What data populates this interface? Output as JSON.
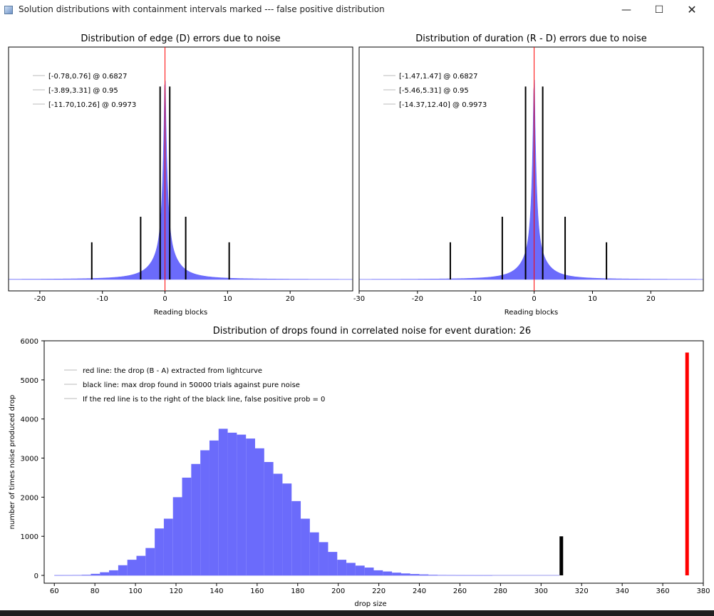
{
  "window": {
    "title": "Solution distributions with containment intervals marked --- false positive distribution",
    "minimize_glyph": "—",
    "maximize_glyph": "☐",
    "close_glyph": "✕"
  },
  "colors": {
    "distribution_fill": "#6b6bfb",
    "center_line": "#ff0000",
    "interval_line": "#000000",
    "drop_line": "#ff0000"
  },
  "chart_data": [
    {
      "type": "area",
      "title": "Distribution of edge (D) errors due to noise",
      "xlabel": "Reading blocks",
      "ylabel": "",
      "xlim": [
        -25,
        30
      ],
      "x_ticks": [
        -20,
        -10,
        0,
        10,
        20
      ],
      "center": 0,
      "distribution_shape": "sharp peak at 0 with heavy tails",
      "legend_position": "top-left",
      "legend": [
        "[-0.78,0.76] @ 0.6827",
        "[-3.89,3.31] @ 0.95",
        "[-11.70,10.26] @ 0.9973"
      ],
      "intervals": [
        {
          "low": -0.78,
          "high": 0.76,
          "confidence": 0.6827,
          "height": 0.83
        },
        {
          "low": -3.89,
          "high": 3.31,
          "confidence": 0.95,
          "height": 0.27
        },
        {
          "low": -11.7,
          "high": 10.26,
          "confidence": 0.9973,
          "height": 0.16
        }
      ]
    },
    {
      "type": "area",
      "title": "Distribution of duration (R - D) errors due to noise",
      "xlabel": "Reading blocks",
      "ylabel": "",
      "xlim": [
        -30,
        29
      ],
      "x_ticks": [
        -30,
        -20,
        -10,
        0,
        10,
        20
      ],
      "center": 0,
      "distribution_shape": "sharp peak at 0 with heavy tails",
      "legend_position": "top-left",
      "legend": [
        "[-1.47,1.47] @ 0.6827",
        "[-5.46,5.31] @ 0.95",
        "[-14.37,12.40] @ 0.9973"
      ],
      "intervals": [
        {
          "low": -1.47,
          "high": 1.47,
          "confidence": 0.6827,
          "height": 0.83
        },
        {
          "low": -5.46,
          "high": 5.31,
          "confidence": 0.95,
          "height": 0.27
        },
        {
          "low": -14.37,
          "high": 12.4,
          "confidence": 0.9973,
          "height": 0.16
        }
      ]
    },
    {
      "type": "bar",
      "title": "Distribution of drops found in correlated noise for event duration: 26",
      "xlabel": "drop size",
      "ylabel": "number of times noise produced drop",
      "xlim": [
        55,
        380
      ],
      "ylim": [
        -200,
        6000
      ],
      "x_ticks": [
        60,
        80,
        100,
        120,
        140,
        160,
        180,
        200,
        220,
        240,
        260,
        280,
        300,
        320,
        340,
        360,
        380
      ],
      "y_ticks": [
        0,
        1000,
        2000,
        3000,
        4000,
        5000,
        6000
      ],
      "legend_position": "top-left",
      "legend": [
        "red line: the drop (B - A) extracted from lightcurve",
        "black line: max drop found in 50000 trials against pure noise",
        "If the red line is to the right of the black line, false positive prob = 0"
      ],
      "bin_width": 4.5,
      "bins": [
        {
          "x": 60,
          "y": 2
        },
        {
          "x": 64.5,
          "y": 4
        },
        {
          "x": 69,
          "y": 8
        },
        {
          "x": 73.5,
          "y": 15
        },
        {
          "x": 78,
          "y": 40
        },
        {
          "x": 82.5,
          "y": 80
        },
        {
          "x": 87,
          "y": 130
        },
        {
          "x": 91.5,
          "y": 260
        },
        {
          "x": 96,
          "y": 400
        },
        {
          "x": 100.5,
          "y": 500
        },
        {
          "x": 105,
          "y": 700
        },
        {
          "x": 109.5,
          "y": 1200
        },
        {
          "x": 114,
          "y": 1450
        },
        {
          "x": 118.5,
          "y": 2000
        },
        {
          "x": 123,
          "y": 2500
        },
        {
          "x": 127.5,
          "y": 2850
        },
        {
          "x": 132,
          "y": 3200
        },
        {
          "x": 136.5,
          "y": 3450
        },
        {
          "x": 141,
          "y": 3750
        },
        {
          "x": 145.5,
          "y": 3650
        },
        {
          "x": 150,
          "y": 3600
        },
        {
          "x": 154.5,
          "y": 3500
        },
        {
          "x": 159,
          "y": 3250
        },
        {
          "x": 163.5,
          "y": 2900
        },
        {
          "x": 168,
          "y": 2600
        },
        {
          "x": 172.5,
          "y": 2350
        },
        {
          "x": 177,
          "y": 1900
        },
        {
          "x": 181.5,
          "y": 1450
        },
        {
          "x": 186,
          "y": 1100
        },
        {
          "x": 190.5,
          "y": 850
        },
        {
          "x": 195,
          "y": 600
        },
        {
          "x": 199.5,
          "y": 400
        },
        {
          "x": 204,
          "y": 320
        },
        {
          "x": 208.5,
          "y": 250
        },
        {
          "x": 213,
          "y": 200
        },
        {
          "x": 217.5,
          "y": 130
        },
        {
          "x": 222,
          "y": 100
        },
        {
          "x": 226.5,
          "y": 70
        },
        {
          "x": 231,
          "y": 50
        },
        {
          "x": 235.5,
          "y": 35
        },
        {
          "x": 240,
          "y": 25
        },
        {
          "x": 244.5,
          "y": 15
        },
        {
          "x": 249,
          "y": 10
        },
        {
          "x": 253.5,
          "y": 6
        },
        {
          "x": 258,
          "y": 3
        },
        {
          "x": 262.5,
          "y": 2
        },
        {
          "x": 267,
          "y": 1
        },
        {
          "x": 271.5,
          "y": 1
        }
      ],
      "baseline_end": 309,
      "black_line": {
        "x": 310,
        "height": 1000
      },
      "red_line": {
        "x": 372,
        "height": 5700
      }
    }
  ]
}
